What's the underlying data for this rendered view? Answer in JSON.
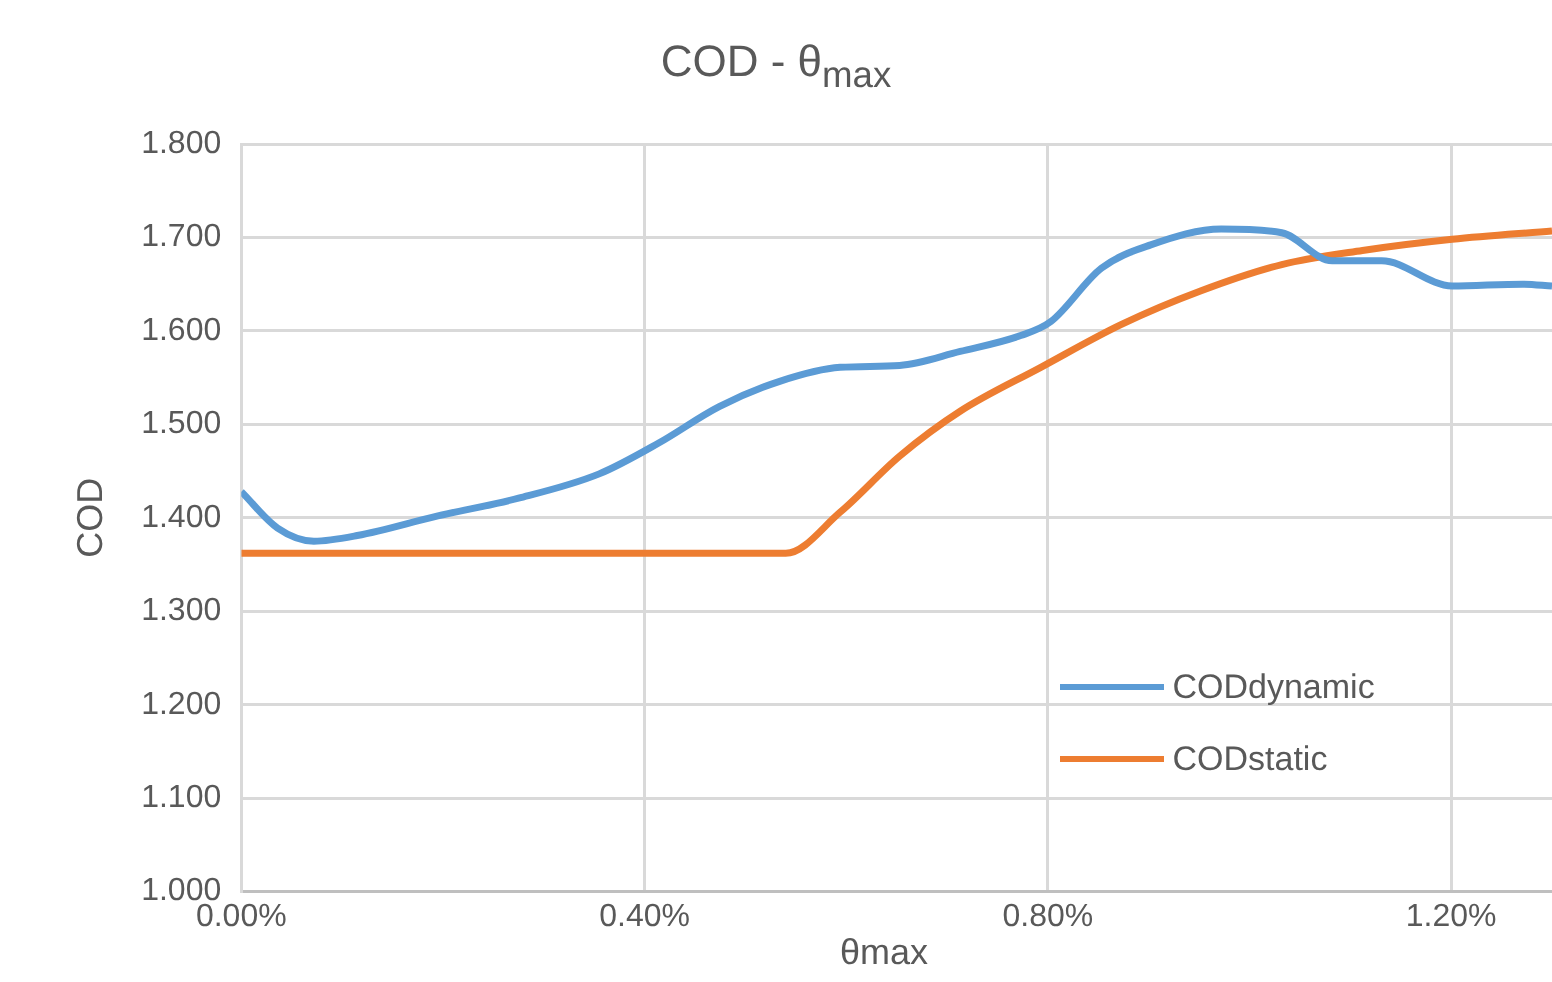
{
  "chart_data": {
    "type": "line",
    "title": "COD - θ$_{max}$",
    "xlabel": "θmax",
    "ylabel": "COD",
    "xlim": [
      0,
      1.3
    ],
    "xticks": [
      {
        "value": 0,
        "label": "0.00%"
      },
      {
        "value": 0.4,
        "label": "0.40%"
      },
      {
        "value": 0.8,
        "label": "0.80%"
      },
      {
        "value": 1.2,
        "label": "1.20%"
      }
    ],
    "ylim": [
      1.0,
      1.8
    ],
    "yticks": [
      {
        "value": 1.0,
        "label": "1.000"
      },
      {
        "value": 1.1,
        "label": "1.100"
      },
      {
        "value": 1.2,
        "label": "1.200"
      },
      {
        "value": 1.3,
        "label": "1.300"
      },
      {
        "value": 1.4,
        "label": "1.400"
      },
      {
        "value": 1.5,
        "label": "1.500"
      },
      {
        "value": 1.6,
        "label": "1.600"
      },
      {
        "value": 1.7,
        "label": "1.700"
      },
      {
        "value": 1.8,
        "label": "1.800"
      }
    ],
    "grid": true,
    "legend": "bottom right",
    "marker": "none",
    "line_style": "solid",
    "series": [
      {
        "name": "CODdynamic",
        "color": "#5b9bd5",
        "x": [
          0,
          0.036,
          0.072,
          0.115,
          0.195,
          0.275,
          0.355,
          0.414,
          0.474,
          0.534,
          0.594,
          0.653,
          0.713,
          0.773,
          0.803,
          0.853,
          0.902,
          0.972,
          1.032,
          1.082,
          1.131,
          1.201,
          1.271,
          1.3
        ],
        "values": [
          1.428,
          1.389,
          1.375,
          1.381,
          1.402,
          1.421,
          1.447,
          1.48,
          1.519,
          1.546,
          1.561,
          1.563,
          1.578,
          1.595,
          1.61,
          1.667,
          1.692,
          1.709,
          1.705,
          1.675,
          1.675,
          1.648,
          1.65,
          1.648
        ]
      },
      {
        "name": "CODstatic",
        "color": "#ed7d31",
        "x": [
          0,
          0.54,
          0.594,
          0.653,
          0.713,
          0.793,
          0.873,
          0.952,
          1.032,
          1.112,
          1.201,
          1.3
        ],
        "values": [
          1.362,
          1.362,
          1.406,
          1.466,
          1.514,
          1.561,
          1.607,
          1.643,
          1.671,
          1.686,
          1.698,
          1.707
        ]
      }
    ]
  }
}
